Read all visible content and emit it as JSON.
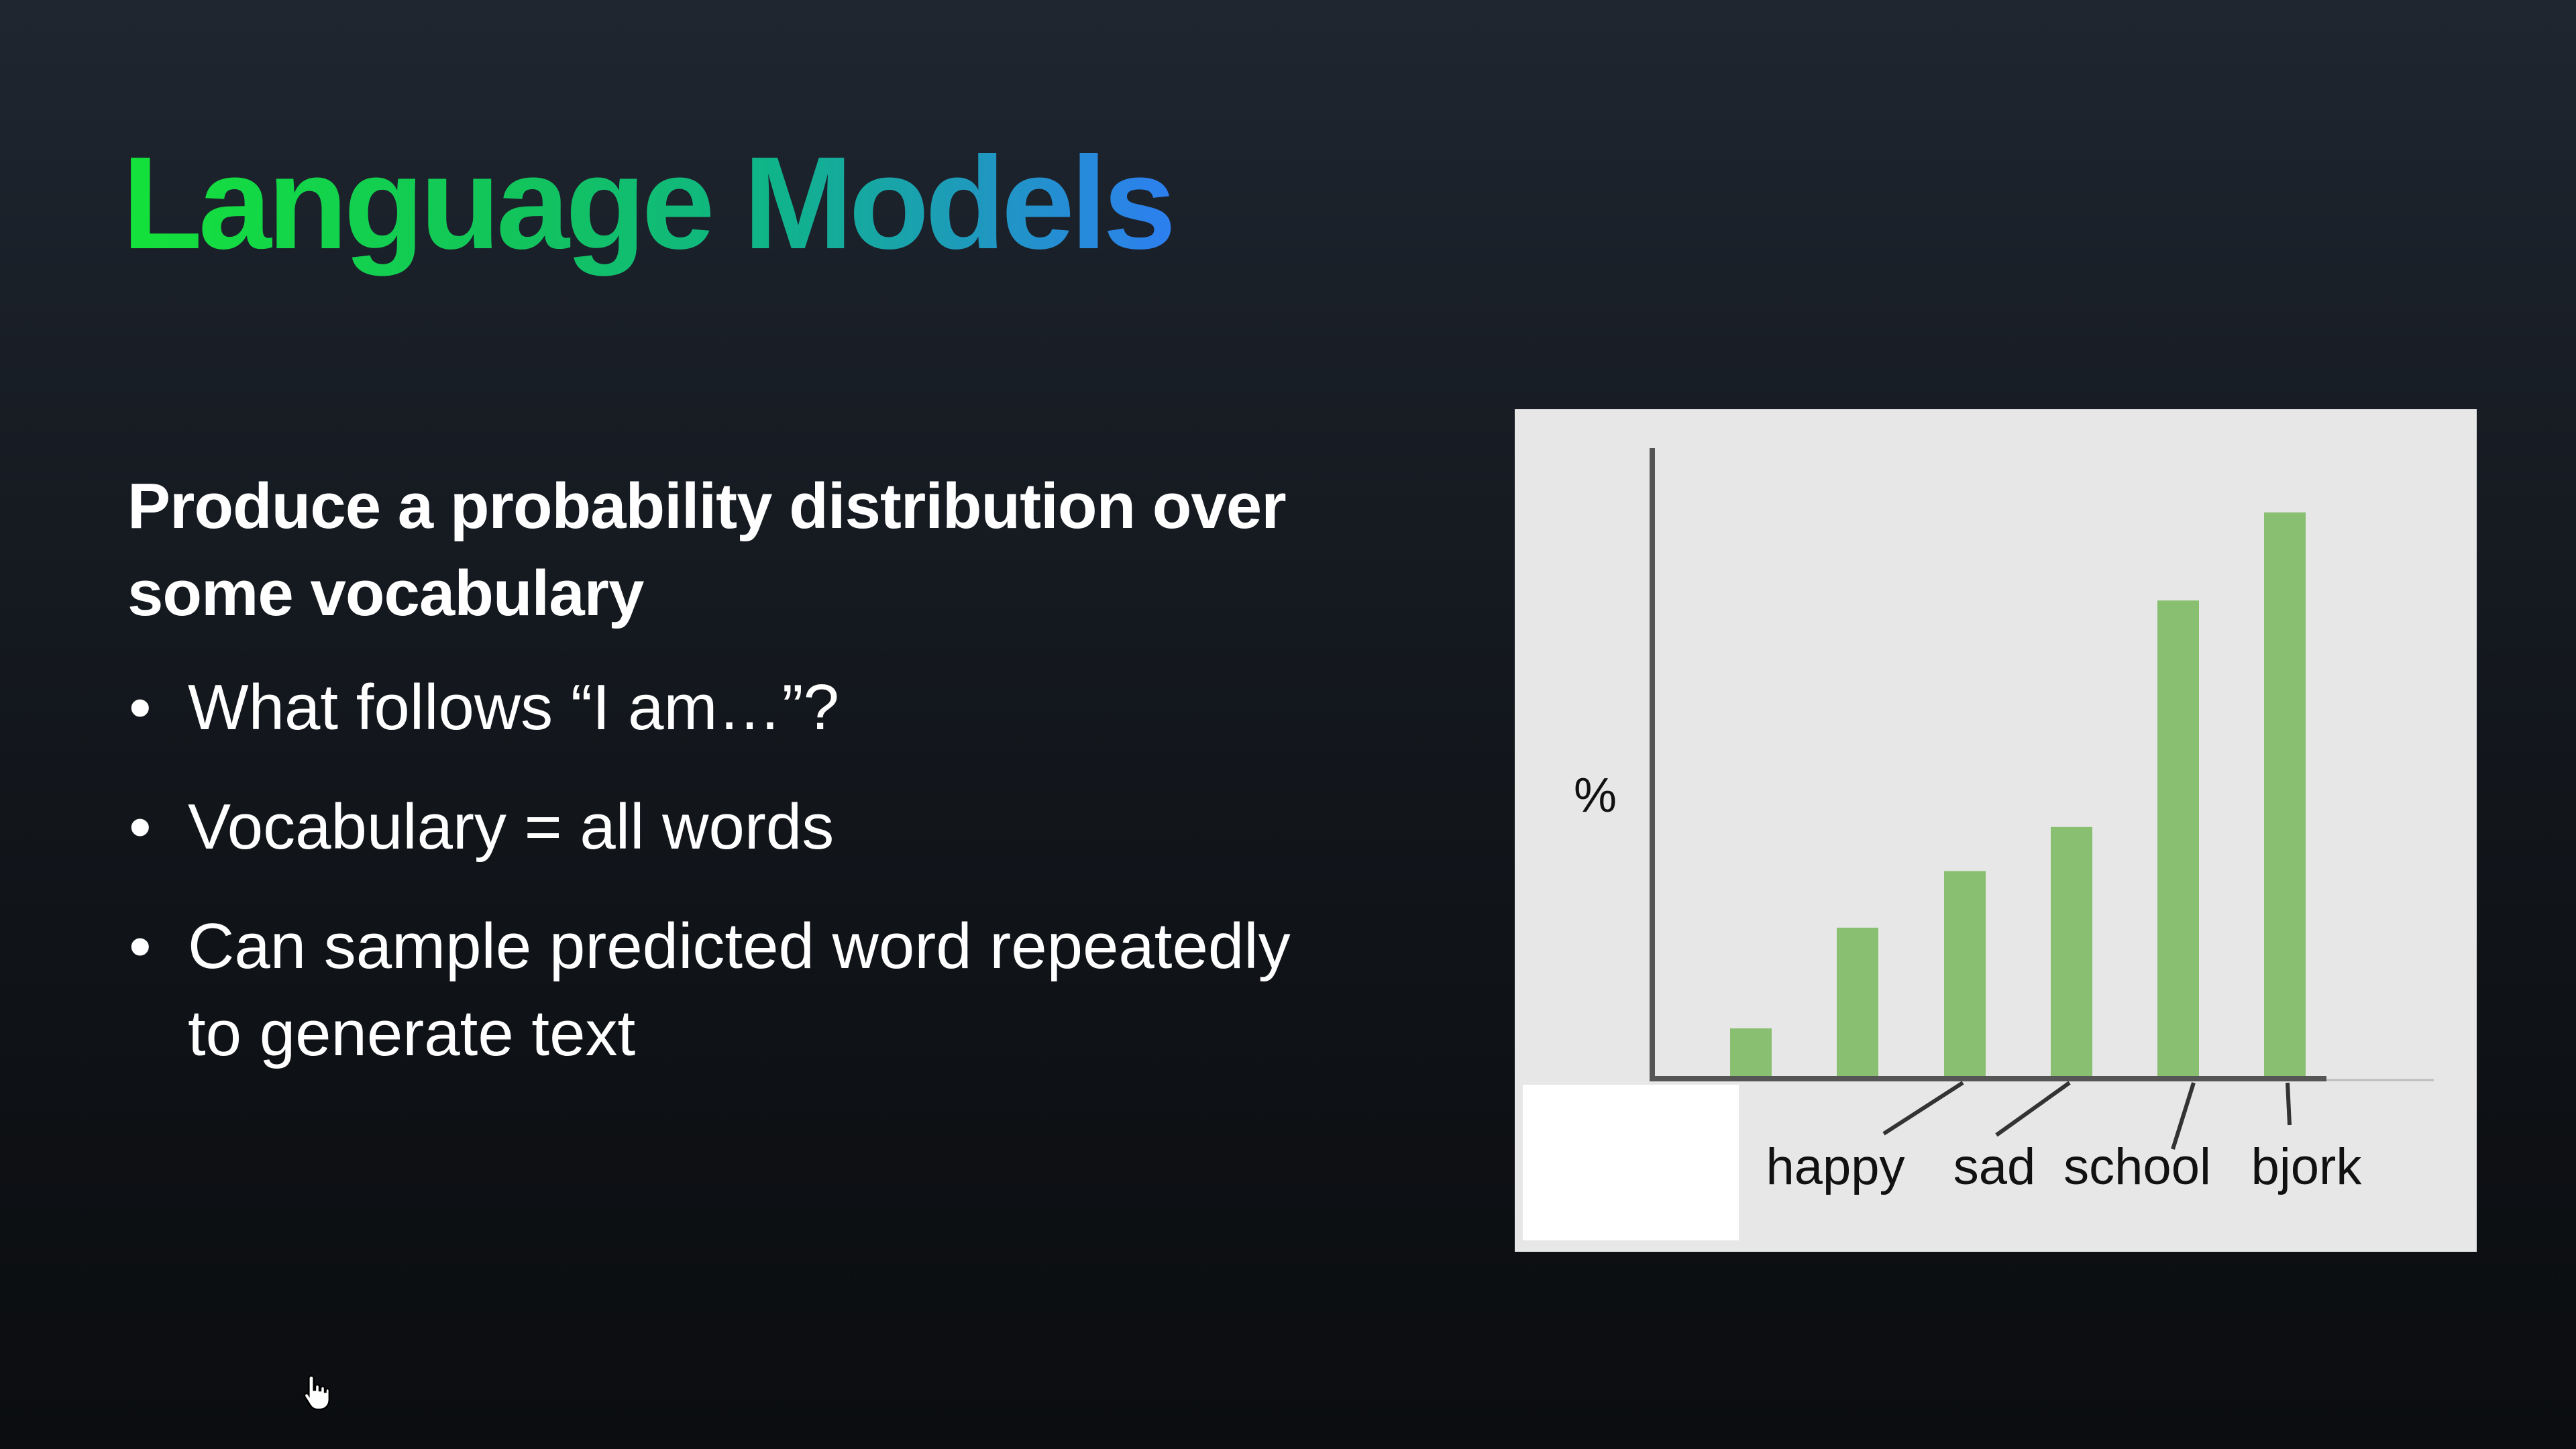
{
  "slide": {
    "title": "Language Models",
    "subheading": "Produce a probability distribution over some vocabulary",
    "bullets": [
      "What follows “I am…”?",
      "Vocabulary = all words",
      "Can sample predicted word repeatedly to generate text"
    ]
  },
  "colors": {
    "title_gradient": [
      "#14e23a",
      "#12c45c",
      "#10b48a",
      "#2d7ff0"
    ],
    "bar": "#88bf70",
    "axis": "#555555",
    "panel_background": "#e7e7e7"
  },
  "chart_data": {
    "type": "bar",
    "ylabel": "%",
    "bars": [
      {
        "value": 8
      },
      {
        "value": 24
      },
      {
        "value": 33
      },
      {
        "value": 40
      },
      {
        "value": 76
      },
      {
        "value": 90
      }
    ],
    "word_labels": [
      "happy",
      "sad",
      "school",
      "bjork"
    ],
    "ylim": [
      0,
      100
    ],
    "grid": false,
    "legend": "none"
  },
  "cursor_icon": "hand-pointer-icon"
}
